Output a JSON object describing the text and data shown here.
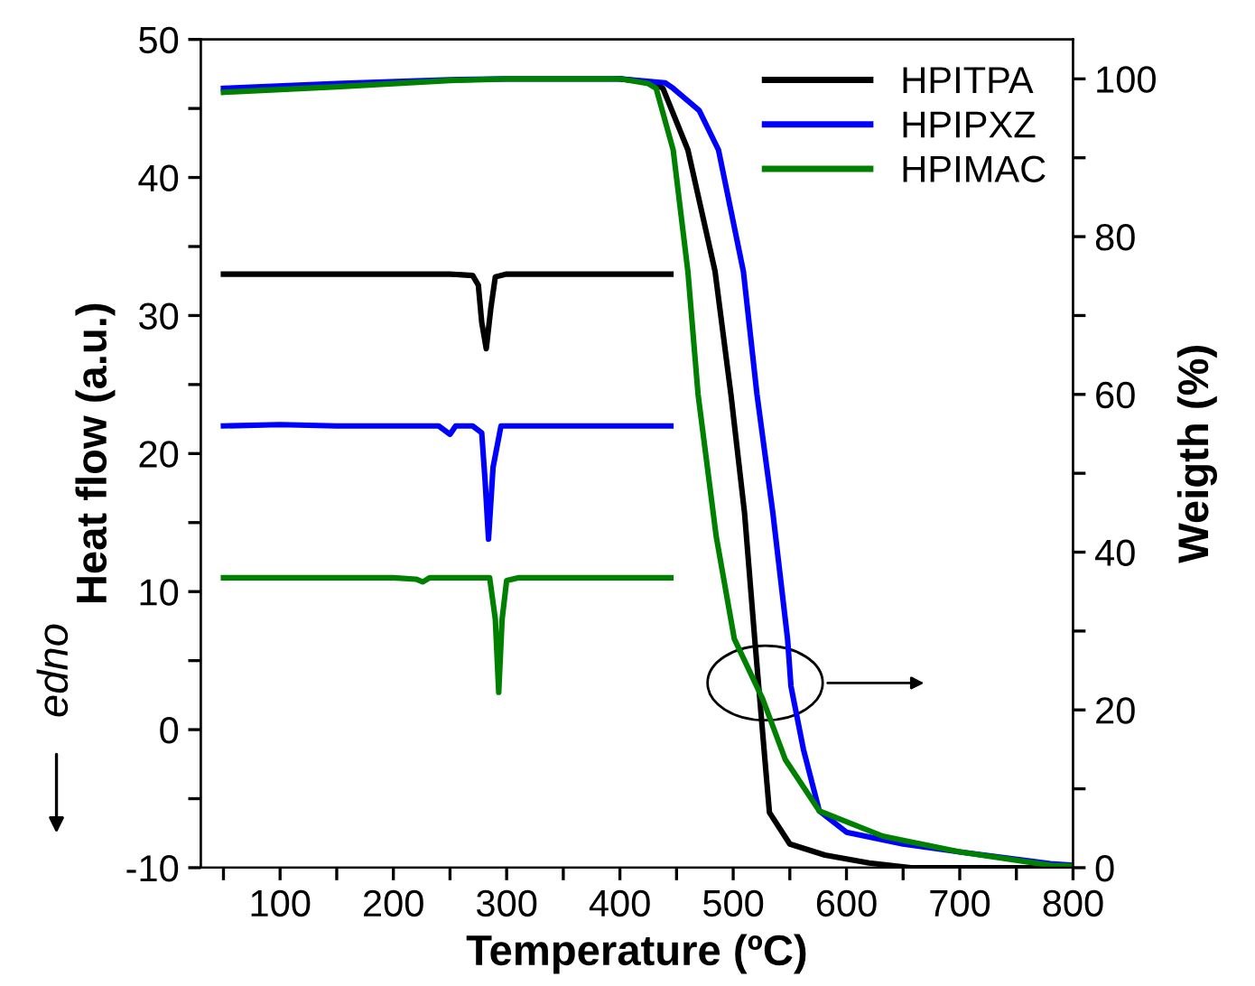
{
  "chart_data": {
    "type": "line",
    "xlabel": "Temperature (ºC)",
    "ylabel": "Heat flow (a.u.)",
    "y2label": "Weigth (%)",
    "xlim": [
      30,
      800
    ],
    "xticks": [
      {
        "value": 50,
        "label": null
      },
      100,
      {
        "value": 150,
        "label": null
      },
      200,
      {
        "value": 250,
        "label": null
      },
      300,
      {
        "value": 350,
        "label": null
      },
      400,
      {
        "value": 450,
        "label": null
      },
      500,
      {
        "value": 550,
        "label": null
      },
      600,
      {
        "value": 650,
        "label": null
      },
      700,
      {
        "value": 750,
        "label": null
      },
      800
    ],
    "ylim": [
      -10,
      50
    ],
    "yticks": [
      -10,
      {
        "value": -5,
        "label": null
      },
      0,
      {
        "value": 5,
        "label": null
      },
      10,
      {
        "value": 15,
        "label": null
      },
      20,
      {
        "value": 25,
        "label": null
      },
      30,
      {
        "value": 35,
        "label": null
      },
      40,
      {
        "value": 45,
        "label": null
      },
      50
    ],
    "y2lim": [
      0,
      105
    ],
    "y2ticks": [
      0,
      {
        "value": 10,
        "label": null
      },
      20,
      {
        "value": 30,
        "label": null
      },
      40,
      {
        "value": 50,
        "label": null
      },
      60,
      {
        "value": 70,
        "label": null
      },
      80,
      {
        "value": 90,
        "label": null
      },
      100
    ],
    "legend": "top right",
    "grid": false,
    "marker": "none",
    "line_style": "solid",
    "annotations": [
      "edno"
    ],
    "series": [
      {
        "color": "#000000",
        "x": [
          50,
          100,
          150,
          200,
          250,
          270,
          275,
          278,
          282,
          286,
          290,
          300,
          350,
          400,
          445
        ],
        "values": [
          33,
          33,
          33,
          33,
          33,
          32.9,
          32.2,
          29.5,
          27.6,
          30.5,
          32.8,
          33,
          33,
          33,
          33
        ]
      },
      {
        "color": "#0000ff",
        "x": [
          50,
          100,
          150,
          200,
          240,
          250,
          255,
          270,
          278,
          281,
          284,
          288,
          295,
          350,
          400,
          445
        ],
        "values": [
          22,
          22.1,
          22,
          22,
          22,
          21.4,
          22,
          22,
          21.5,
          18,
          13.8,
          19,
          22,
          22,
          22,
          22
        ]
      },
      {
        "color": "#008000",
        "x": [
          50,
          100,
          150,
          200,
          220,
          226,
          232,
          270,
          285,
          290,
          293,
          296,
          300,
          310,
          350,
          400,
          445
        ],
        "values": [
          11,
          11,
          11,
          11,
          10.9,
          10.7,
          11,
          11,
          11,
          8,
          2.7,
          8,
          10.8,
          11,
          11,
          11,
          11
        ]
      },
      {
        "name": "HPITPA",
        "axis": "y2",
        "color": "#000000",
        "x": [
          400,
          430,
          438,
          460,
          484,
          498,
          510,
          519,
          528,
          532,
          550,
          581,
          620,
          657,
          700,
          800
        ],
        "values": [
          100,
          99.5,
          98.8,
          91,
          75.6,
          60,
          45,
          29,
          13.7,
          7,
          3,
          1.6,
          0.6,
          0,
          0,
          0
        ]
      },
      {
        "name": "HPIPXZ",
        "axis": "y2",
        "color": "#0000ff",
        "x": [
          50,
          150,
          250,
          300,
          400,
          440,
          447,
          470,
          487,
          509,
          521,
          535,
          548,
          551,
          562,
          576,
          600,
          650,
          700,
          780,
          800
        ],
        "values": [
          98.8,
          99.4,
          99.9,
          100,
          100,
          99.5,
          98.8,
          96,
          91,
          75.6,
          60,
          45,
          29,
          23,
          15,
          7.2,
          4.5,
          3,
          2,
          0.5,
          0.3
        ]
      },
      {
        "name": "HPIMAC",
        "axis": "y2",
        "color": "#008000",
        "x": [
          50,
          150,
          250,
          300,
          400,
          425,
          432,
          447,
          460,
          469,
          485,
          501,
          526,
          546,
          576,
          632,
          700,
          780,
          800
        ],
        "values": [
          98.3,
          99,
          99.8,
          100,
          100,
          99.4,
          98.8,
          91,
          75.6,
          60,
          42,
          29,
          21.4,
          13.7,
          7.2,
          4,
          2,
          0.3,
          0.2
        ]
      }
    ]
  }
}
